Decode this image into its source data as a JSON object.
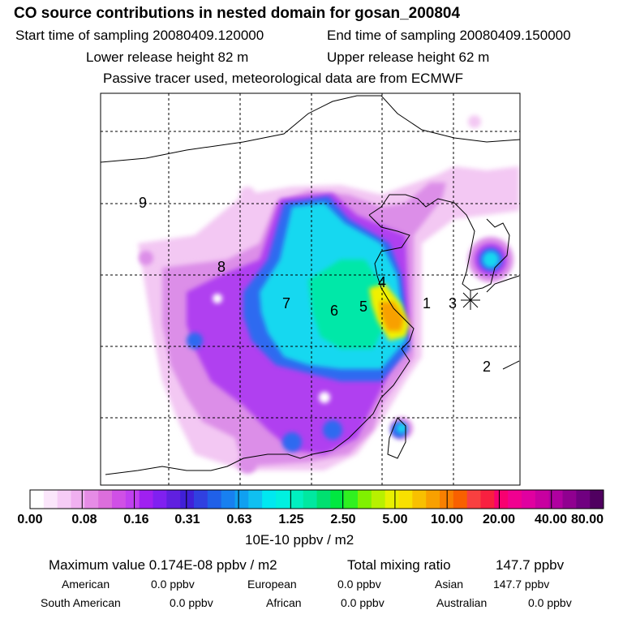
{
  "header": {
    "title": "CO  source contributions in nested domain for gosan_200804",
    "start_time": "Start time of sampling 20080409.120000",
    "end_time": "End time of sampling 20080409.150000",
    "lower_height": "Lower release height   82 m",
    "upper_height": "Upper release height   62 m",
    "note": "Passive tracer used, meteorological data are from ECMWF"
  },
  "region_labels": [
    "1",
    "2",
    "3",
    "4",
    "5",
    "6",
    "7",
    "8",
    "9"
  ],
  "colorbar": {
    "ticks": [
      "0.00",
      "0.08",
      "0.16",
      "0.31",
      "0.63",
      "1.25",
      "2.50",
      "5.00",
      "10.00",
      "20.00",
      "40.00",
      "80.00"
    ],
    "unit": "10E-10 ppbv / m2",
    "colors": [
      "#ffffff",
      "#fbe6fb",
      "#f6ccf6",
      "#f0b0f0",
      "#e68ce6",
      "#dc6edc",
      "#d050e6",
      "#c040f0",
      "#a020f0",
      "#8020f0",
      "#6020e0",
      "#4020d8",
      "#3040e0",
      "#2060e8",
      "#1880f0",
      "#10a0f0",
      "#10c0f0",
      "#00e8f0",
      "#00f0e0",
      "#00f0c0",
      "#00e8a0",
      "#00e070",
      "#00e840",
      "#30f020",
      "#80f000",
      "#b8f000",
      "#e8f000",
      "#f8e000",
      "#f8c000",
      "#f8a000",
      "#f88000",
      "#f86000",
      "#f84040",
      "#f82040",
      "#f80070",
      "#f00090",
      "#e000a0",
      "#c800a0",
      "#b000a0",
      "#900090",
      "#700080",
      "#500060"
    ]
  },
  "stats": {
    "max_value": "Maximum value  0.174E-08 ppbv / m2",
    "total_label": "Total mixing ratio",
    "total_value": "147.7 ppbv",
    "american": "American",
    "american_val": "0.0 ppbv",
    "european": "European",
    "european_val": "0.0 ppbv",
    "asian": "Asian",
    "asian_val": "147.7 ppbv",
    "south_american": "South American",
    "south_american_val": "0.0 ppbv",
    "african": "African",
    "african_val": "0.0 ppbv",
    "australian": "Australian",
    "australian_val": "0.0 ppbv"
  }
}
